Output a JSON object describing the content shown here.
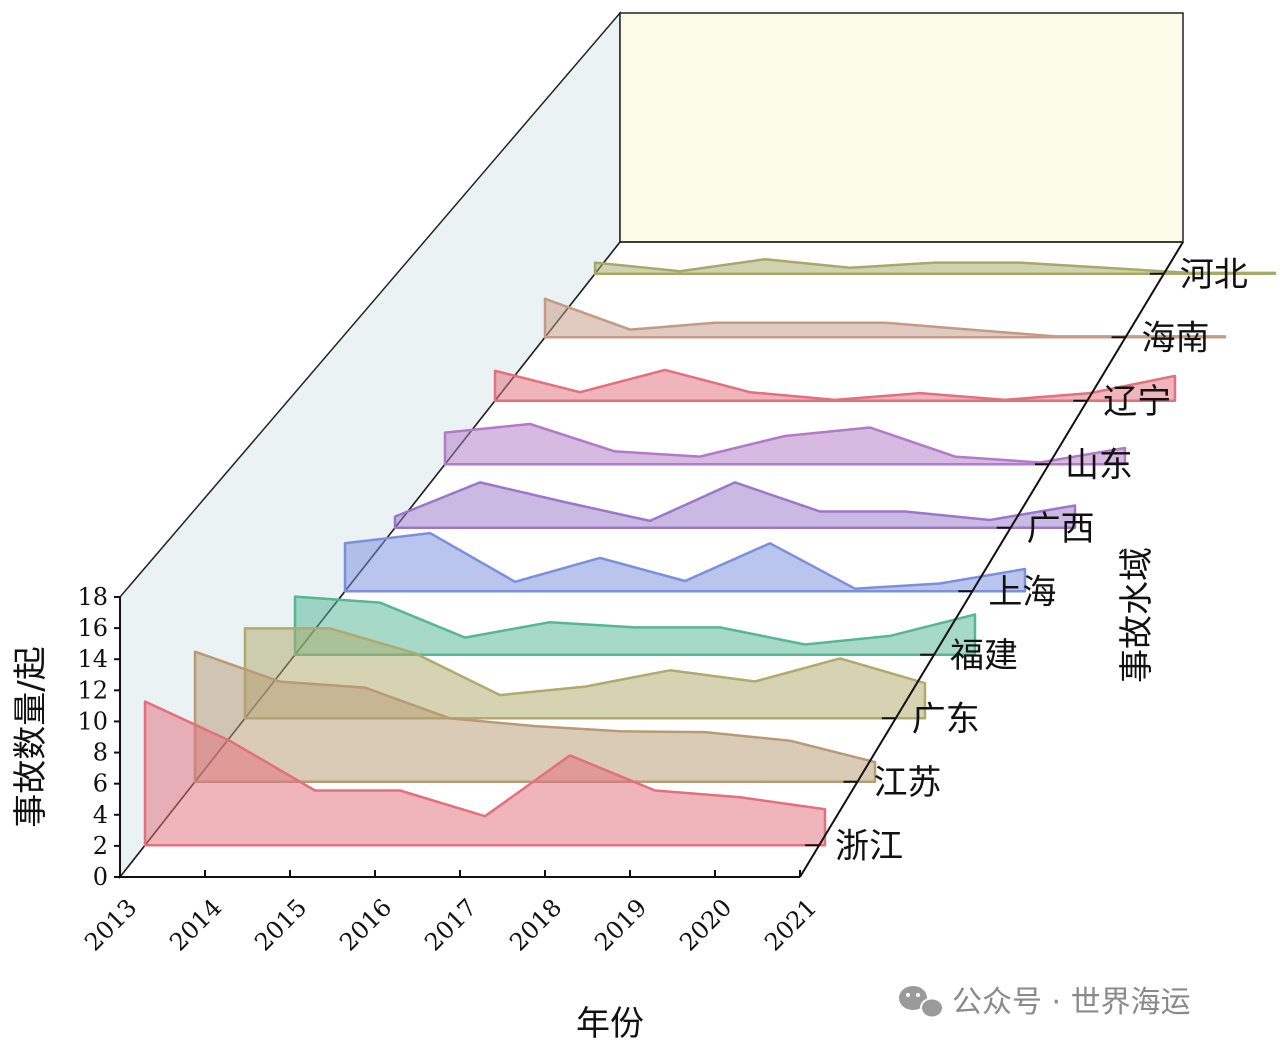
{
  "chart_data": {
    "type": "area",
    "subtype": "3d-ridgeline",
    "title": "",
    "xlabel": "年份",
    "ylabel": "事故数量/起",
    "zlabel": "事故水域",
    "x": [
      "2013",
      "2014",
      "2015",
      "2016",
      "2017",
      "2018",
      "2019",
      "2020",
      "2021"
    ],
    "yticks": [
      "0",
      "2",
      "4",
      "6",
      "8",
      "10",
      "12",
      "14",
      "16",
      "18"
    ],
    "ylim": [
      0,
      18
    ],
    "grid": false,
    "legend": "none",
    "series": [
      {
        "name": "浙江",
        "color": "#e3707c",
        "values": [
          16.8,
          12.2,
          6.4,
          6.4,
          3.4,
          10.5,
          6.4,
          5.6,
          4.2
        ]
      },
      {
        "name": "江苏",
        "color": "#b89b74",
        "values": [
          15.2,
          11.7,
          11.0,
          7.4,
          6.5,
          5.9,
          5.8,
          4.8,
          2.3
        ]
      },
      {
        "name": "广东",
        "color": "#b0aa6e",
        "values": [
          10.5,
          10.5,
          7.6,
          2.7,
          3.7,
          5.6,
          4.3,
          7.0,
          4.1
        ]
      },
      {
        "name": "福建",
        "color": "#55b794",
        "values": [
          6.8,
          6.1,
          2.0,
          3.8,
          3.2,
          3.2,
          1.2,
          2.2,
          4.7
        ]
      },
      {
        "name": "上海",
        "color": "#7b8fdc",
        "values": [
          5.6,
          6.8,
          1.1,
          3.9,
          1.2,
          5.6,
          0.3,
          0.9,
          2.6
        ]
      },
      {
        "name": "广西",
        "color": "#9a78c9",
        "values": [
          1.3,
          5.3,
          3.0,
          0.8,
          5.3,
          1.9,
          1.9,
          0.9,
          2.6
        ]
      },
      {
        "name": "山东",
        "color": "#b27ac7",
        "values": [
          3.7,
          4.7,
          1.5,
          0.9,
          3.3,
          4.3,
          0.9,
          0.2,
          1.9
        ]
      },
      {
        "name": "辽宁",
        "color": "#e3707c",
        "values": [
          3.5,
          1.0,
          3.6,
          1.0,
          0.1,
          0.9,
          0.1,
          0.9,
          2.9
        ]
      },
      {
        "name": "海南",
        "color": "#c59a85",
        "values": [
          4.5,
          0.9,
          1.7,
          1.7,
          1.7,
          0.9,
          0.1,
          0.1,
          0.1
        ]
      },
      {
        "name": "河北",
        "color": "#a7a968",
        "values": [
          1.3,
          0.3,
          1.7,
          0.7,
          1.3,
          1.3,
          0.7,
          0.1,
          0.1
        ]
      }
    ]
  },
  "watermark": {
    "text": "公众号 · 世界海运",
    "icon": "wechat-icon"
  }
}
